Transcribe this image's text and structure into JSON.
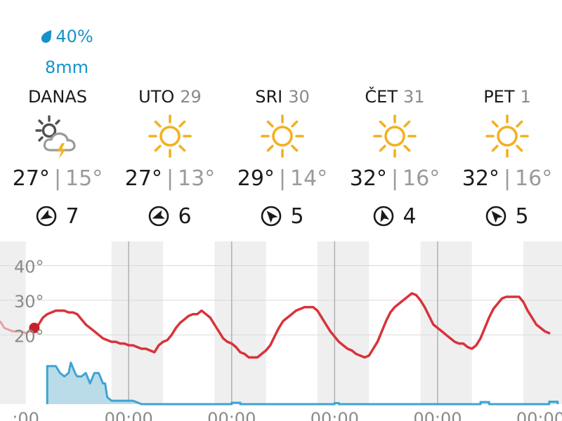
{
  "precip": {
    "probability": "40%",
    "amount": "8mm"
  },
  "days": [
    {
      "name": "DANAS",
      "date": "",
      "icon": "sun-cloud-lightning-icon",
      "high": "27°",
      "sep": "|",
      "low": "15°",
      "wind": "7",
      "wind_dir_deg": 240
    },
    {
      "name": "UTO",
      "date": "29",
      "icon": "sun-icon",
      "high": "27°",
      "sep": "|",
      "low": "13°",
      "wind": "6",
      "wind_dir_deg": 250
    },
    {
      "name": "SRI",
      "date": "30",
      "icon": "sun-icon",
      "high": "29°",
      "sep": "|",
      "low": "14°",
      "wind": "5",
      "wind_dir_deg": 320
    },
    {
      "name": "ČET",
      "date": "31",
      "icon": "sun-icon",
      "high": "32°",
      "sep": "|",
      "low": "16°",
      "wind": "4",
      "wind_dir_deg": 345
    },
    {
      "name": "PET",
      "date": "1",
      "icon": "sun-icon",
      "high": "32°",
      "sep": "|",
      "low": "16°",
      "wind": "5",
      "wind_dir_deg": 320
    }
  ],
  "colors": {
    "precip_text": "#1592c9",
    "sun": "#f2b122",
    "temperature_line": "#d8333b",
    "past_temperature_line": "#e8a0a4",
    "current_marker": "#c8202a",
    "rain_fill": "#b9dce8",
    "rain_line": "#3fa3d3",
    "night_band": "#efefef",
    "grid": "#d9d9d9",
    "midnight_line": "#b0b0b0"
  },
  "chart_data": {
    "type": "line",
    "y_ticks": [
      "40°",
      "30°",
      "20°"
    ],
    "y_tick_values": [
      40,
      30,
      20
    ],
    "ylim": [
      0,
      47
    ],
    "x_ticks": [
      ":00",
      "00:00",
      "00:00",
      "00:00",
      "00:00",
      "00:00"
    ],
    "x_tick_hours": [
      0,
      24,
      48,
      72,
      96,
      120
    ],
    "xlim": [
      -6,
      125
    ],
    "midnight_hours": [
      24,
      48,
      72,
      96
    ],
    "night_bands": [
      [
        -6,
        0
      ],
      [
        20,
        32
      ],
      [
        44,
        56
      ],
      [
        68,
        80
      ],
      [
        92,
        104
      ],
      [
        116,
        125
      ]
    ],
    "current_hour": 2,
    "series": [
      {
        "kind": "past_temperature",
        "points": [
          [
            -6,
            24
          ],
          [
            -5,
            22
          ],
          [
            -3,
            21
          ],
          [
            -1,
            21
          ],
          [
            0,
            20.5
          ],
          [
            1,
            21
          ],
          [
            2,
            22
          ]
        ]
      },
      {
        "kind": "temperature",
        "points": [
          [
            2,
            22
          ],
          [
            3,
            23
          ],
          [
            4,
            25
          ],
          [
            5,
            26
          ],
          [
            6,
            26.5
          ],
          [
            7,
            27
          ],
          [
            8,
            27
          ],
          [
            9,
            27
          ],
          [
            10,
            26.5
          ],
          [
            11,
            26.5
          ],
          [
            12,
            26
          ],
          [
            13,
            24.5
          ],
          [
            14,
            23
          ],
          [
            15,
            22
          ],
          [
            16,
            21
          ],
          [
            17,
            20
          ],
          [
            18,
            19
          ],
          [
            19,
            18.5
          ],
          [
            20,
            18
          ],
          [
            21,
            18
          ],
          [
            22,
            17.5
          ],
          [
            23,
            17.5
          ],
          [
            24,
            17
          ],
          [
            25,
            17
          ],
          [
            26,
            16.5
          ],
          [
            27,
            16
          ],
          [
            28,
            16
          ],
          [
            29,
            15.5
          ],
          [
            30,
            15
          ],
          [
            31,
            17
          ],
          [
            32,
            18
          ],
          [
            33,
            18.5
          ],
          [
            34,
            20
          ],
          [
            35,
            22
          ],
          [
            36,
            23.5
          ],
          [
            37,
            24.5
          ],
          [
            38,
            25.5
          ],
          [
            39,
            26
          ],
          [
            40,
            26
          ],
          [
            41,
            27
          ],
          [
            42,
            26
          ],
          [
            43,
            25
          ],
          [
            44,
            23
          ],
          [
            45,
            21
          ],
          [
            46,
            19
          ],
          [
            47,
            18
          ],
          [
            48,
            17.5
          ],
          [
            49,
            16.5
          ],
          [
            50,
            15
          ],
          [
            51,
            14.5
          ],
          [
            52,
            13.5
          ],
          [
            53,
            13.5
          ],
          [
            54,
            13.5
          ],
          [
            55,
            14.5
          ],
          [
            56,
            15.5
          ],
          [
            57,
            17
          ],
          [
            58,
            19.5
          ],
          [
            59,
            22
          ],
          [
            60,
            24
          ],
          [
            61,
            25
          ],
          [
            62,
            26
          ],
          [
            63,
            27
          ],
          [
            64,
            27.5
          ],
          [
            65,
            28
          ],
          [
            66,
            28
          ],
          [
            67,
            28
          ],
          [
            68,
            27
          ],
          [
            69,
            25
          ],
          [
            70,
            23
          ],
          [
            71,
            21
          ],
          [
            72,
            19.5
          ],
          [
            73,
            18
          ],
          [
            74,
            17
          ],
          [
            75,
            16
          ],
          [
            76,
            15.5
          ],
          [
            77,
            14.5
          ],
          [
            78,
            14
          ],
          [
            79,
            13.5
          ],
          [
            80,
            14
          ],
          [
            81,
            16
          ],
          [
            82,
            18
          ],
          [
            83,
            21
          ],
          [
            84,
            24
          ],
          [
            85,
            26.5
          ],
          [
            86,
            28
          ],
          [
            87,
            29
          ],
          [
            88,
            30
          ],
          [
            89,
            31
          ],
          [
            90,
            32
          ],
          [
            91,
            31.5
          ],
          [
            92,
            30
          ],
          [
            93,
            28
          ],
          [
            94,
            25.5
          ],
          [
            95,
            23
          ],
          [
            96,
            22
          ],
          [
            97,
            21
          ],
          [
            98,
            20
          ],
          [
            99,
            19
          ],
          [
            100,
            18
          ],
          [
            101,
            17.5
          ],
          [
            102,
            17.5
          ],
          [
            103,
            16.5
          ],
          [
            104,
            16
          ],
          [
            105,
            17
          ],
          [
            106,
            19
          ],
          [
            107,
            22
          ],
          [
            108,
            25
          ],
          [
            109,
            27.5
          ],
          [
            110,
            29
          ],
          [
            111,
            30.5
          ],
          [
            112,
            31
          ],
          [
            113,
            31
          ],
          [
            114,
            31
          ],
          [
            115,
            31
          ],
          [
            116,
            29.5
          ],
          [
            117,
            27
          ],
          [
            118,
            25
          ],
          [
            119,
            23
          ],
          [
            120,
            22
          ],
          [
            121,
            21
          ],
          [
            122,
            20.5
          ]
        ]
      },
      {
        "kind": "precipitation",
        "points": [
          [
            5,
            0
          ],
          [
            5,
            11
          ],
          [
            7,
            11
          ],
          [
            8,
            9
          ],
          [
            9,
            8
          ],
          [
            10,
            9
          ],
          [
            10.5,
            12
          ],
          [
            11.5,
            9
          ],
          [
            12,
            8
          ],
          [
            13,
            8
          ],
          [
            14,
            9
          ],
          [
            15,
            6
          ],
          [
            16,
            9
          ],
          [
            17,
            9
          ],
          [
            18,
            6
          ],
          [
            18.5,
            6
          ],
          [
            19,
            2
          ],
          [
            20,
            1
          ],
          [
            25,
            1
          ],
          [
            26,
            0.5
          ],
          [
            27,
            0
          ],
          [
            48,
            0
          ],
          [
            48,
            0.4
          ],
          [
            50,
            0.4
          ],
          [
            50,
            0
          ],
          [
            72,
            0
          ],
          [
            72,
            0.3
          ],
          [
            73,
            0.3
          ],
          [
            73,
            0
          ],
          [
            106,
            0
          ],
          [
            106,
            0.6
          ],
          [
            108,
            0.6
          ],
          [
            108,
            0
          ],
          [
            122,
            0
          ],
          [
            122,
            0.7
          ],
          [
            124,
            0.7
          ],
          [
            124,
            0
          ]
        ]
      }
    ]
  }
}
